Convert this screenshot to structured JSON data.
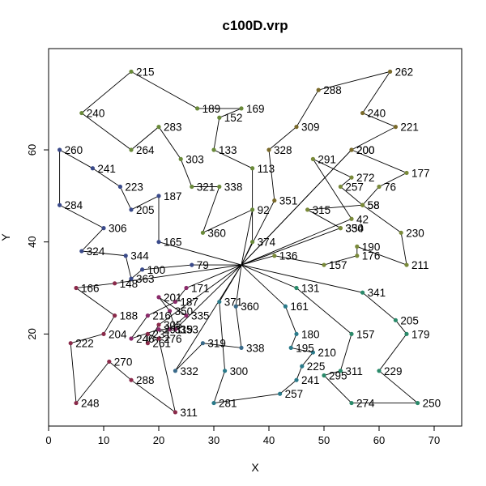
{
  "chart_data": {
    "type": "scatter",
    "title": "c100D.vrp",
    "xlabel": "X",
    "ylabel": "Y",
    "xlim": [
      0,
      75
    ],
    "ylim": [
      0,
      82
    ],
    "x_ticks": [
      0,
      10,
      20,
      30,
      40,
      50,
      60,
      70
    ],
    "y_ticks": [
      20,
      40,
      60
    ],
    "grid": false,
    "legend": "none",
    "depot": [
      35,
      35
    ],
    "routes": [
      {
        "color": "#7a8a3a",
        "stops": [
          {
            "x": 55,
            "y": 45,
            "label": "42"
          },
          {
            "x": 48,
            "y": 58,
            "label": "291"
          },
          {
            "x": 55,
            "y": 54,
            "label": "272"
          },
          {
            "x": 53,
            "y": 52,
            "label": "257"
          },
          {
            "x": 57,
            "y": 48,
            "label": "58"
          },
          {
            "x": 47,
            "y": 47,
            "label": "315"
          },
          {
            "x": 53,
            "y": 43,
            "label": "350"
          },
          {
            "x": 53,
            "y": 43,
            "label": "334"
          }
        ]
      },
      {
        "color": "#7a8a3a",
        "stops": [
          {
            "x": 55,
            "y": 60,
            "label": "200"
          },
          {
            "x": 65,
            "y": 55,
            "label": "177"
          },
          {
            "x": 60,
            "y": 52,
            "label": "76"
          },
          {
            "x": 57,
            "y": 48,
            "label": "58"
          },
          {
            "x": 64,
            "y": 42,
            "label": "230"
          },
          {
            "x": 65,
            "y": 35,
            "label": "211"
          },
          {
            "x": 56,
            "y": 39,
            "label": "190"
          },
          {
            "x": 56,
            "y": 37,
            "label": "176"
          },
          {
            "x": 50,
            "y": 35,
            "label": "157"
          },
          {
            "x": 41,
            "y": 37,
            "label": "136"
          }
        ]
      },
      {
        "color": "#7a6a2a",
        "stops": [
          {
            "x": 41,
            "y": 49,
            "label": "351"
          },
          {
            "x": 40,
            "y": 60,
            "label": "328"
          },
          {
            "x": 45,
            "y": 65,
            "label": "309"
          },
          {
            "x": 49,
            "y": 73,
            "label": "288"
          },
          {
            "x": 62,
            "y": 77,
            "label": "262"
          },
          {
            "x": 57,
            "y": 68,
            "label": "240"
          },
          {
            "x": 63,
            "y": 65,
            "label": "221"
          },
          {
            "x": 55,
            "y": 60,
            "label": "200"
          }
        ]
      },
      {
        "color": "#6a8a3a",
        "stops": [
          {
            "x": 37,
            "y": 40,
            "label": "374"
          },
          {
            "x": 37,
            "y": 56,
            "label": "113"
          },
          {
            "x": 30,
            "y": 60,
            "label": "133"
          },
          {
            "x": 31,
            "y": 67,
            "label": "152"
          },
          {
            "x": 35,
            "y": 69,
            "label": "169"
          },
          {
            "x": 27,
            "y": 69,
            "label": "189"
          },
          {
            "x": 15,
            "y": 77,
            "label": "215"
          },
          {
            "x": 6,
            "y": 68,
            "label": "240"
          },
          {
            "x": 15,
            "y": 60,
            "label": "264"
          },
          {
            "x": 20,
            "y": 65,
            "label": "283"
          },
          {
            "x": 24,
            "y": 58,
            "label": "303"
          },
          {
            "x": 26,
            "y": 52,
            "label": "321"
          },
          {
            "x": 31,
            "y": 52,
            "label": "338"
          },
          {
            "x": 28,
            "y": 42,
            "label": "360"
          },
          {
            "x": 37,
            "y": 47,
            "label": "92"
          }
        ]
      },
      {
        "color": "#3a4a8a",
        "stops": [
          {
            "x": 20,
            "y": 40,
            "label": "165"
          },
          {
            "x": 20,
            "y": 50,
            "label": "187"
          },
          {
            "x": 15,
            "y": 47,
            "label": "205"
          },
          {
            "x": 13,
            "y": 52,
            "label": "223"
          },
          {
            "x": 8,
            "y": 56,
            "label": "241"
          },
          {
            "x": 2,
            "y": 60,
            "label": "260"
          },
          {
            "x": 2,
            "y": 48,
            "label": "284"
          },
          {
            "x": 10,
            "y": 43,
            "label": "306"
          },
          {
            "x": 6,
            "y": 38,
            "label": "324"
          },
          {
            "x": 14,
            "y": 37,
            "label": "344"
          },
          {
            "x": 15,
            "y": 32,
            "label": "363"
          },
          {
            "x": 17,
            "y": 34,
            "label": "100"
          },
          {
            "x": 26,
            "y": 35,
            "label": "79"
          }
        ]
      },
      {
        "color": "#8a2a4a",
        "stops": [
          {
            "x": 12,
            "y": 31,
            "label": "148"
          },
          {
            "x": 5,
            "y": 30,
            "label": "166"
          },
          {
            "x": 12,
            "y": 24,
            "label": "188"
          },
          {
            "x": 10,
            "y": 20,
            "label": "204"
          },
          {
            "x": 4,
            "y": 18,
            "label": "222"
          },
          {
            "x": 5,
            "y": 5,
            "label": "248"
          },
          {
            "x": 11,
            "y": 14,
            "label": "270"
          },
          {
            "x": 15,
            "y": 10,
            "label": "288"
          },
          {
            "x": 23,
            "y": 3,
            "label": "311"
          },
          {
            "x": 20,
            "y": 19,
            "label": "276"
          },
          {
            "x": 18,
            "y": 20,
            "label": "231"
          },
          {
            "x": 18,
            "y": 18,
            "label": "261"
          },
          {
            "x": 20,
            "y": 22,
            "label": "305"
          }
        ]
      },
      {
        "color": "#8a2a6a",
        "stops": [
          {
            "x": 25,
            "y": 30,
            "label": "171"
          },
          {
            "x": 23,
            "y": 27,
            "label": "187"
          },
          {
            "x": 18,
            "y": 24,
            "label": "216"
          },
          {
            "x": 15,
            "y": 19,
            "label": "246"
          },
          {
            "x": 20,
            "y": 21,
            "label": "291"
          },
          {
            "x": 22,
            "y": 21,
            "label": "319"
          },
          {
            "x": 25,
            "y": 24,
            "label": "335"
          },
          {
            "x": 20,
            "y": 28,
            "label": "201"
          },
          {
            "x": 22,
            "y": 25,
            "label": "350"
          },
          {
            "x": 23,
            "y": 21,
            "label": "353"
          }
        ]
      },
      {
        "color": "#3a6a8a",
        "stops": [
          {
            "x": 34,
            "y": 26,
            "label": "360"
          },
          {
            "x": 35,
            "y": 17,
            "label": "338"
          },
          {
            "x": 28,
            "y": 18,
            "label": "319"
          },
          {
            "x": 23,
            "y": 12,
            "label": "332"
          }
        ]
      },
      {
        "color": "#2a7a8a",
        "stops": [
          {
            "x": 43,
            "y": 26,
            "label": "161"
          },
          {
            "x": 45,
            "y": 20,
            "label": "180"
          },
          {
            "x": 44,
            "y": 17,
            "label": "195"
          },
          {
            "x": 48,
            "y": 16,
            "label": "210"
          },
          {
            "x": 46,
            "y": 13,
            "label": "225"
          },
          {
            "x": 45,
            "y": 10,
            "label": "241"
          },
          {
            "x": 42,
            "y": 7,
            "label": "257"
          },
          {
            "x": 30,
            "y": 5,
            "label": "281"
          },
          {
            "x": 32,
            "y": 12,
            "label": "300"
          },
          {
            "x": 31,
            "y": 27,
            "label": "371"
          }
        ]
      },
      {
        "color": "#2a8a6a",
        "stops": [
          {
            "x": 45,
            "y": 30,
            "label": "131"
          },
          {
            "x": 55,
            "y": 20,
            "label": "157"
          },
          {
            "x": 53,
            "y": 12,
            "label": "311"
          },
          {
            "x": 50,
            "y": 11,
            "label": "295"
          },
          {
            "x": 55,
            "y": 5,
            "label": "274"
          },
          {
            "x": 67,
            "y": 5,
            "label": "250"
          },
          {
            "x": 60,
            "y": 12,
            "label": "229"
          },
          {
            "x": 65,
            "y": 20,
            "label": "179"
          },
          {
            "x": 63,
            "y": 23,
            "label": "205"
          },
          {
            "x": 57,
            "y": 29,
            "label": "341"
          }
        ]
      }
    ]
  }
}
